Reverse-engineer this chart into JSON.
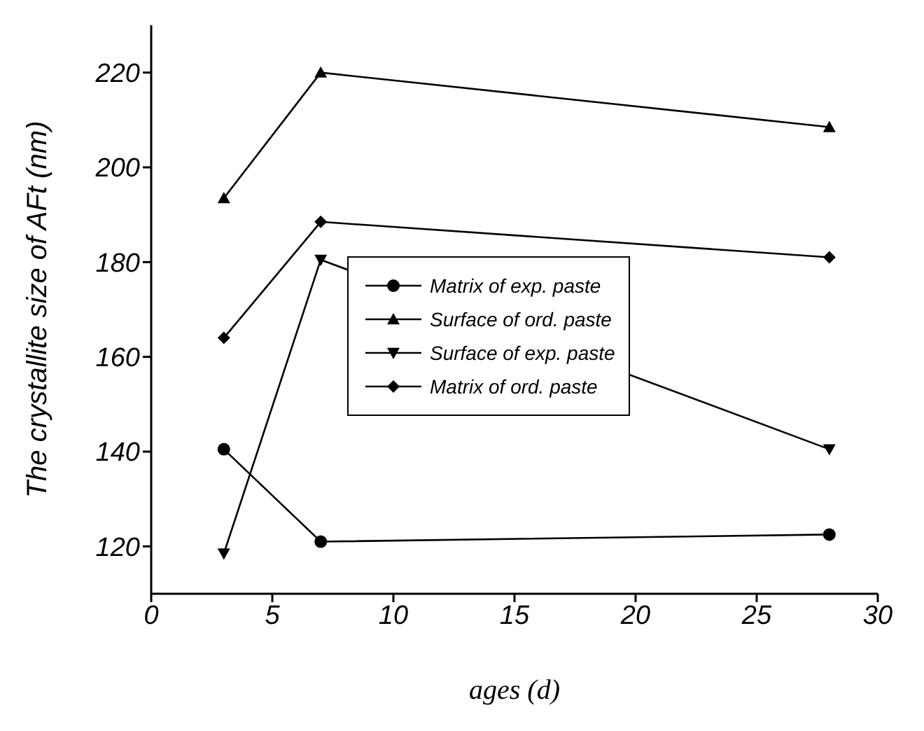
{
  "chart_data": {
    "type": "line",
    "xlabel": "ages (d)",
    "ylabel": "The crystallite size of AFt  (nm)",
    "x": [
      3,
      7,
      28
    ],
    "series": [
      {
        "name": "Matrix of exp. paste",
        "color": "#000000",
        "marker": "circle",
        "values": [
          140.5,
          121,
          122.5
        ]
      },
      {
        "name": "Surface of ord. paste",
        "color": "#000000",
        "marker": "triangle",
        "values": [
          193.5,
          220,
          208.5
        ]
      },
      {
        "name": "Surface of exp. paste",
        "color": "#000000",
        "marker": "triangle-down",
        "values": [
          118.5,
          180.5,
          140.5
        ]
      },
      {
        "name": "Matrix of ord. paste",
        "color": "#000000",
        "marker": "diamond",
        "values": [
          164,
          188.5,
          181
        ]
      }
    ],
    "xlim": [
      0,
      30
    ],
    "xticks": [
      0,
      5,
      10,
      15,
      20,
      25,
      30
    ],
    "ylim": [
      110,
      230
    ],
    "yticks": [
      120,
      140,
      160,
      180,
      200,
      220
    ],
    "grid": false,
    "legend": "center right"
  }
}
